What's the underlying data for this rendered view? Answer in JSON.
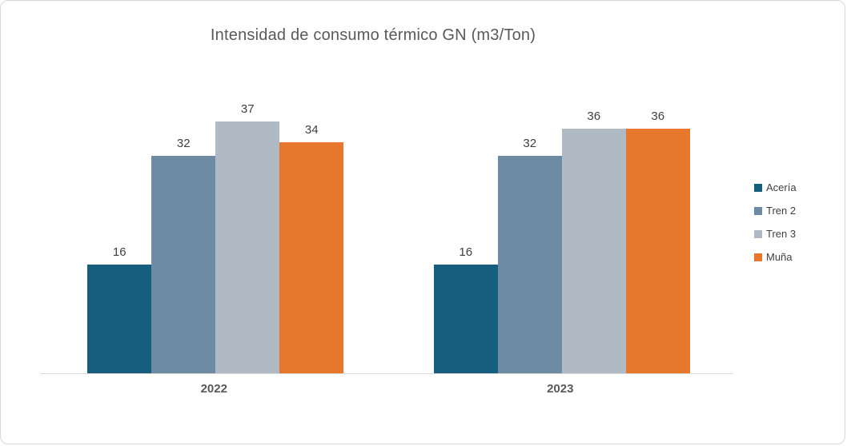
{
  "chart_data": {
    "type": "bar",
    "title": "Intensidad de consumo térmico GN (m3/Ton)",
    "categories": [
      "2022",
      "2023"
    ],
    "series": [
      {
        "name": "Acería",
        "color": "#155E7D",
        "values": [
          16,
          16
        ]
      },
      {
        "name": "Tren 2",
        "color": "#6D8CA3",
        "values": [
          32,
          32
        ]
      },
      {
        "name": "Tren 3",
        "color": "#B0BAC5",
        "values": [
          37,
          36
        ]
      },
      {
        "name": "Muña",
        "color": "#E8772E",
        "values": [
          34,
          36
        ]
      }
    ],
    "ylim": [
      0,
      43
    ],
    "xlabel": "",
    "ylabel": "",
    "grid": false,
    "data_labels": true,
    "legend_position": "right",
    "colors": {
      "title_text": "#595959",
      "data_label_text": "#404040",
      "axis_label_text": "#595959",
      "axis_line": "#d9d9d9",
      "card_border": "#d8d8d8",
      "background": "#ffffff"
    }
  }
}
